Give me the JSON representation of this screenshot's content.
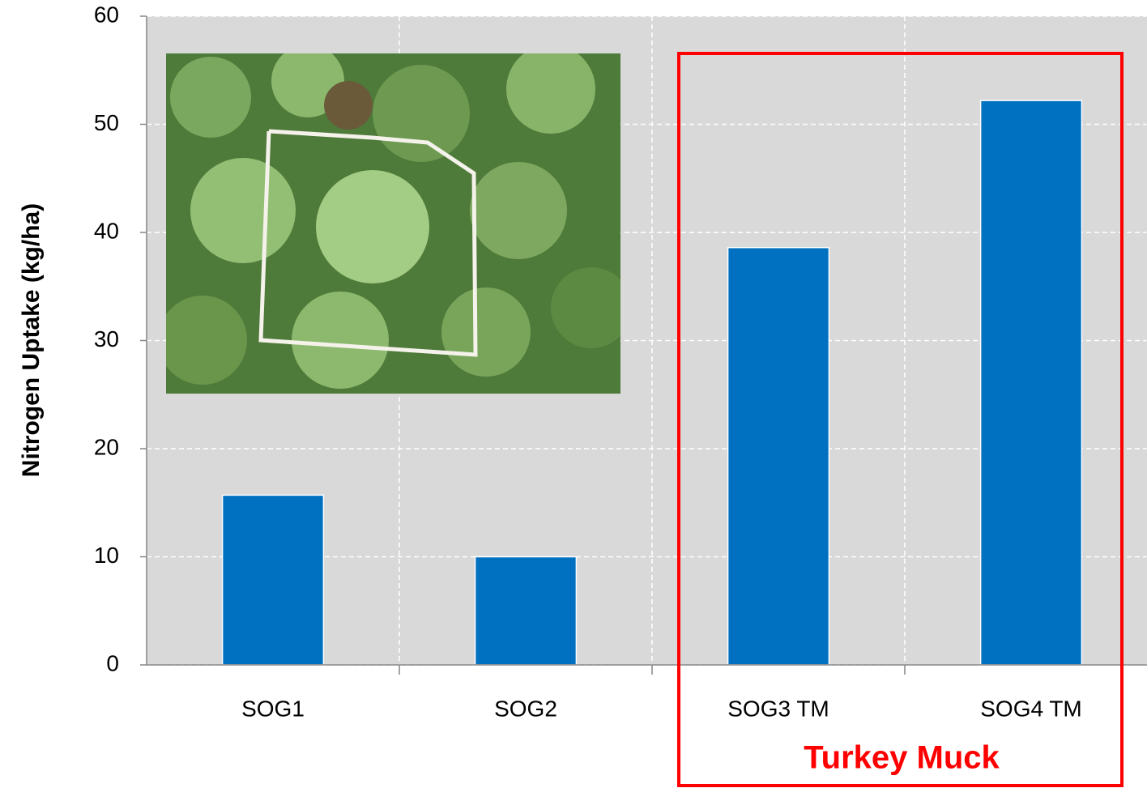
{
  "chart_data": {
    "type": "bar",
    "y_label": "Nitrogen Uptake (kg/ha)",
    "categories": [
      "SOG1",
      "SOG2",
      "SOG3 TM",
      "SOG4 TM"
    ],
    "values": [
      15.7,
      10.0,
      38.6,
      52.2
    ],
    "color": "#0070c0",
    "ylim": [
      0,
      60
    ],
    "yticks": [
      0,
      10,
      20,
      30,
      40,
      50,
      60
    ],
    "grid": true,
    "annotation": "Turkey Muck"
  }
}
